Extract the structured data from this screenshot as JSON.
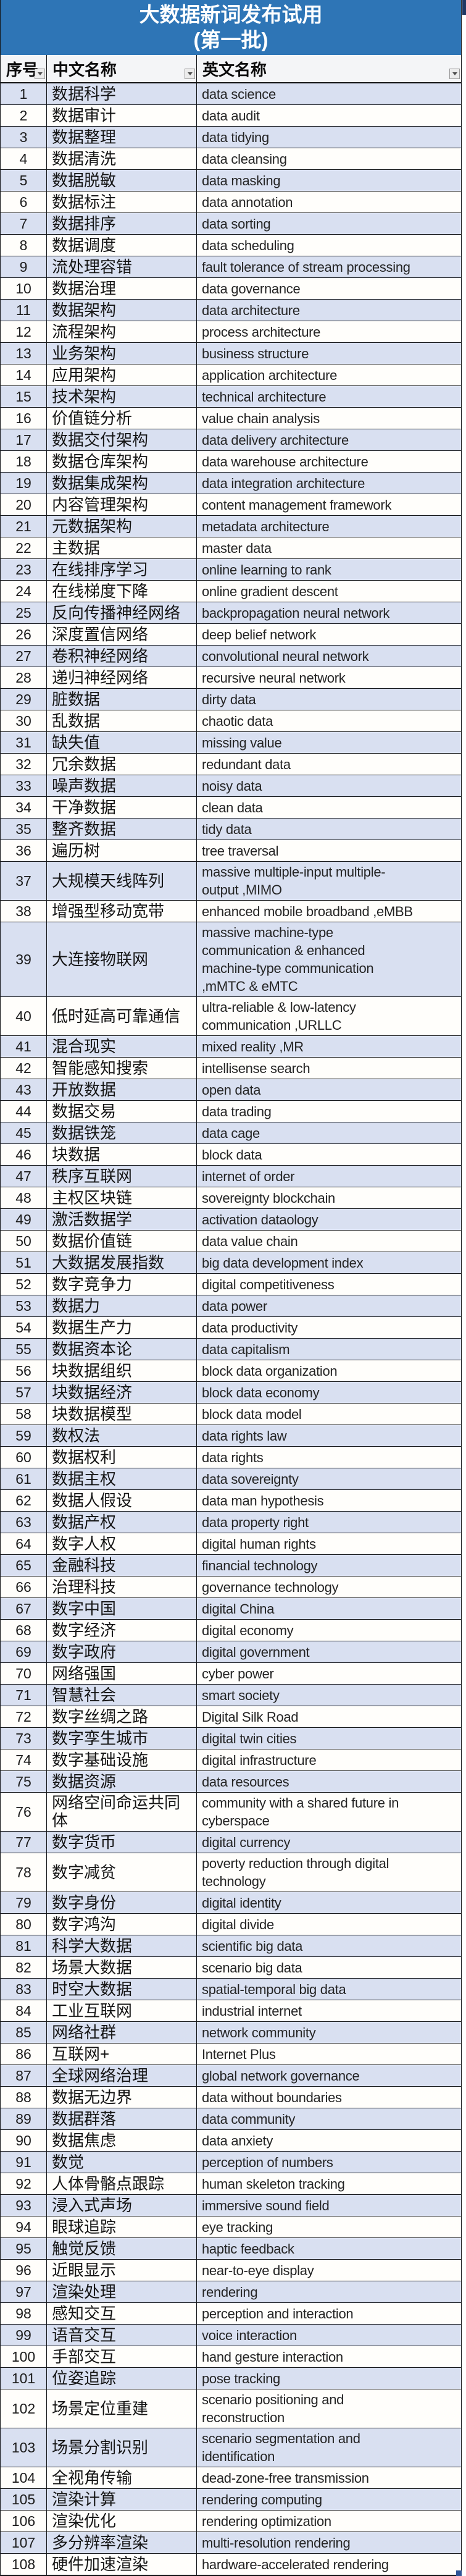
{
  "title": {
    "line1": "大数据新词发布试用",
    "line2": "(第一批)"
  },
  "columns": [
    {
      "label": "序号"
    },
    {
      "label": "中文名称"
    },
    {
      "label": "英文名称"
    }
  ],
  "colors": {
    "title_bg": "#2e75b6",
    "title_text": "#ffffff",
    "band_row": "#d9e0f1",
    "plain_row": "#fffefb",
    "grid_border": "#15171a",
    "header_bg": "#f4f5f7",
    "fill_handle": "#2f5496"
  },
  "rows": [
    {
      "no": "1",
      "cn": "数据科学",
      "en": "data science"
    },
    {
      "no": "2",
      "cn": "数据审计",
      "en": "data audit"
    },
    {
      "no": "3",
      "cn": "数据整理",
      "en": "data tidying"
    },
    {
      "no": "4",
      "cn": "数据清洗",
      "en": "data cleansing"
    },
    {
      "no": "5",
      "cn": "数据脱敏",
      "en": "data masking"
    },
    {
      "no": "6",
      "cn": "数据标注",
      "en": "data annotation"
    },
    {
      "no": "7",
      "cn": "数据排序",
      "en": "data sorting"
    },
    {
      "no": "8",
      "cn": "数据调度",
      "en": "data scheduling"
    },
    {
      "no": "9",
      "cn": "流处理容错",
      "en": "fault tolerance of stream processing"
    },
    {
      "no": "10",
      "cn": "数据治理",
      "en": "data governance"
    },
    {
      "no": "11",
      "cn": "数据架构",
      "en": "data architecture"
    },
    {
      "no": "12",
      "cn": "流程架构",
      "en": "process architecture"
    },
    {
      "no": "13",
      "cn": "业务架构",
      "en": "business structure"
    },
    {
      "no": "14",
      "cn": "应用架构",
      "en": "application architecture"
    },
    {
      "no": "15",
      "cn": "技术架构",
      "en": "technical architecture"
    },
    {
      "no": "16",
      "cn": "价值链分析",
      "en": "value chain analysis"
    },
    {
      "no": "17",
      "cn": "数据交付架构",
      "en": "data delivery architecture"
    },
    {
      "no": "18",
      "cn": "数据仓库架构",
      "en": "data warehouse architecture"
    },
    {
      "no": "19",
      "cn": "数据集成架构",
      "en": "data integration architecture"
    },
    {
      "no": "20",
      "cn": "内容管理架构",
      "en": "content management framework"
    },
    {
      "no": "21",
      "cn": "元数据架构",
      "en": "metadata architecture"
    },
    {
      "no": "22",
      "cn": "主数据",
      "en": "master data"
    },
    {
      "no": "23",
      "cn": "在线排序学习",
      "en": "online learning to rank"
    },
    {
      "no": "24",
      "cn": "在线梯度下降",
      "en": "online gradient descent"
    },
    {
      "no": "25",
      "cn": "反向传播神经网络",
      "en": "backpropagation neural network"
    },
    {
      "no": "26",
      "cn": "深度置信网络",
      "en": "deep belief network"
    },
    {
      "no": "27",
      "cn": "卷积神经网络",
      "en": "convolutional neural network"
    },
    {
      "no": "28",
      "cn": "递归神经网络",
      "en": "recursive neural network"
    },
    {
      "no": "29",
      "cn": "脏数据",
      "en": "dirty data"
    },
    {
      "no": "30",
      "cn": "乱数据",
      "en": "chaotic data"
    },
    {
      "no": "31",
      "cn": "缺失值",
      "en": "missing value"
    },
    {
      "no": "32",
      "cn": "冗余数据",
      "en": "redundant data"
    },
    {
      "no": "33",
      "cn": "噪声数据",
      "en": "noisy data"
    },
    {
      "no": "34",
      "cn": "干净数据",
      "en": "clean data"
    },
    {
      "no": "35",
      "cn": "整齐数据",
      "en": "tidy data"
    },
    {
      "no": "36",
      "cn": "遍历树",
      "en": "tree traversal"
    },
    {
      "no": "37",
      "cn": "大规模天线阵列",
      "en": "massive multiple-input multiple-\noutput ,MIMO"
    },
    {
      "no": "38",
      "cn": "增强型移动宽带",
      "en": "enhanced mobile broadband ,eMBB"
    },
    {
      "no": "39",
      "cn": "大连接物联网",
      "en": "massive machine-type\ncommunication & enhanced\nmachine-type communication\n,mMTC & eMTC"
    },
    {
      "no": "40",
      "cn": "低时延高可靠通信",
      "en": "ultra-reliable & low-latency\ncommunication ,URLLC"
    },
    {
      "no": "41",
      "cn": "混合现实",
      "en": "mixed reality ,MR"
    },
    {
      "no": "42",
      "cn": "智能感知搜索",
      "en": "intellisense search"
    },
    {
      "no": "43",
      "cn": "开放数据",
      "en": "open data"
    },
    {
      "no": "44",
      "cn": "数据交易",
      "en": "data trading"
    },
    {
      "no": "45",
      "cn": "数据铁笼",
      "en": "data cage"
    },
    {
      "no": "46",
      "cn": "块数据",
      "en": "block data"
    },
    {
      "no": "47",
      "cn": "秩序互联网",
      "en": "internet of order"
    },
    {
      "no": "48",
      "cn": "主权区块链",
      "en": "sovereignty blockchain"
    },
    {
      "no": "49",
      "cn": "激活数据学",
      "en": "activation dataology"
    },
    {
      "no": "50",
      "cn": "数据价值链",
      "en": "data value chain"
    },
    {
      "no": "51",
      "cn": "大数据发展指数",
      "en": "big data development index"
    },
    {
      "no": "52",
      "cn": "数字竞争力",
      "en": "digital competitiveness"
    },
    {
      "no": "53",
      "cn": "数据力",
      "en": "data power"
    },
    {
      "no": "54",
      "cn": "数据生产力",
      "en": "data productivity"
    },
    {
      "no": "55",
      "cn": "数据资本论",
      "en": "data capitalism"
    },
    {
      "no": "56",
      "cn": "块数据组织",
      "en": "block data organization"
    },
    {
      "no": "57",
      "cn": "块数据经济",
      "en": "block data economy"
    },
    {
      "no": "58",
      "cn": "块数据模型",
      "en": "block data model"
    },
    {
      "no": "59",
      "cn": "数权法",
      "en": "data rights law"
    },
    {
      "no": "60",
      "cn": "数据权利",
      "en": "data rights"
    },
    {
      "no": "61",
      "cn": "数据主权",
      "en": "data sovereignty"
    },
    {
      "no": "62",
      "cn": "数据人假设",
      "en": "data man hypothesis"
    },
    {
      "no": "63",
      "cn": "数据产权",
      "en": "data property right"
    },
    {
      "no": "64",
      "cn": "数字人权",
      "en": "digital human rights"
    },
    {
      "no": "65",
      "cn": "金融科技",
      "en": "financial technology"
    },
    {
      "no": "66",
      "cn": "治理科技",
      "en": "governance technology"
    },
    {
      "no": "67",
      "cn": "数字中国",
      "en": "digital China"
    },
    {
      "no": "68",
      "cn": "数字经济",
      "en": "digital economy"
    },
    {
      "no": "69",
      "cn": "数字政府",
      "en": "digital government"
    },
    {
      "no": "70",
      "cn": "网络强国",
      "en": "cyber power"
    },
    {
      "no": "71",
      "cn": "智慧社会",
      "en": "smart society"
    },
    {
      "no": "72",
      "cn": "数字丝绸之路",
      "en": "Digital Silk Road"
    },
    {
      "no": "73",
      "cn": "数字孪生城市",
      "en": "digital twin cities"
    },
    {
      "no": "74",
      "cn": "数字基础设施",
      "en": "digital infrastructure"
    },
    {
      "no": "75",
      "cn": "数据资源",
      "en": "data resources"
    },
    {
      "no": "76",
      "cn": "网络空间命运共同\n体",
      "en": "community with a shared future in\ncyberspace"
    },
    {
      "no": "77",
      "cn": "数字货币",
      "en": "digital currency"
    },
    {
      "no": "78",
      "cn": "数字减贫",
      "en": "poverty reduction through digital\ntechnology"
    },
    {
      "no": "79",
      "cn": "数字身份",
      "en": "digital identity"
    },
    {
      "no": "80",
      "cn": "数字鸿沟",
      "en": "digital divide"
    },
    {
      "no": "81",
      "cn": "科学大数据",
      "en": "scientific big data"
    },
    {
      "no": "82",
      "cn": "场景大数据",
      "en": "scenario big data"
    },
    {
      "no": "83",
      "cn": "时空大数据",
      "en": "spatial-temporal big data"
    },
    {
      "no": "84",
      "cn": "工业互联网",
      "en": "industrial internet"
    },
    {
      "no": "85",
      "cn": "网络社群",
      "en": "network community"
    },
    {
      "no": "86",
      "cn": "互联网+",
      "en": "Internet Plus"
    },
    {
      "no": "87",
      "cn": "全球网络治理",
      "en": "global network governance"
    },
    {
      "no": "88",
      "cn": "数据无边界",
      "en": "data without boundaries"
    },
    {
      "no": "89",
      "cn": "数据群落",
      "en": "data community"
    },
    {
      "no": "90",
      "cn": "数据焦虑",
      "en": "data anxiety"
    },
    {
      "no": "91",
      "cn": "数觉",
      "en": "perception of numbers"
    },
    {
      "no": "92",
      "cn": "人体骨骼点跟踪",
      "en": "human skeleton tracking"
    },
    {
      "no": "93",
      "cn": "浸入式声场",
      "en": "immersive sound field"
    },
    {
      "no": "94",
      "cn": "眼球追踪",
      "en": "eye tracking"
    },
    {
      "no": "95",
      "cn": "触觉反馈",
      "en": "haptic feedback"
    },
    {
      "no": "96",
      "cn": "近眼显示",
      "en": "near-to-eye display"
    },
    {
      "no": "97",
      "cn": "渲染处理",
      "en": "rendering"
    },
    {
      "no": "98",
      "cn": "感知交互",
      "en": "perception and interaction"
    },
    {
      "no": "99",
      "cn": "语音交互",
      "en": "voice interaction"
    },
    {
      "no": "100",
      "cn": "手部交互",
      "en": "hand gesture interaction"
    },
    {
      "no": "101",
      "cn": "位姿追踪",
      "en": "pose tracking"
    },
    {
      "no": "102",
      "cn": "场景定位重建",
      "en": "scenario positioning and\nreconstruction"
    },
    {
      "no": "103",
      "cn": "场景分割识别",
      "en": "scenario segmentation and\nidentification"
    },
    {
      "no": "104",
      "cn": "全视角传输",
      "en": "dead-zone-free transmission"
    },
    {
      "no": "105",
      "cn": "渲染计算",
      "en": "rendering computing"
    },
    {
      "no": "106",
      "cn": "渲染优化",
      "en": "rendering optimization"
    },
    {
      "no": "107",
      "cn": "多分辨率渲染",
      "en": "multi-resolution rendering"
    },
    {
      "no": "108",
      "cn": "硬件加速渲染",
      "en": "hardware-accelerated rendering"
    }
  ]
}
